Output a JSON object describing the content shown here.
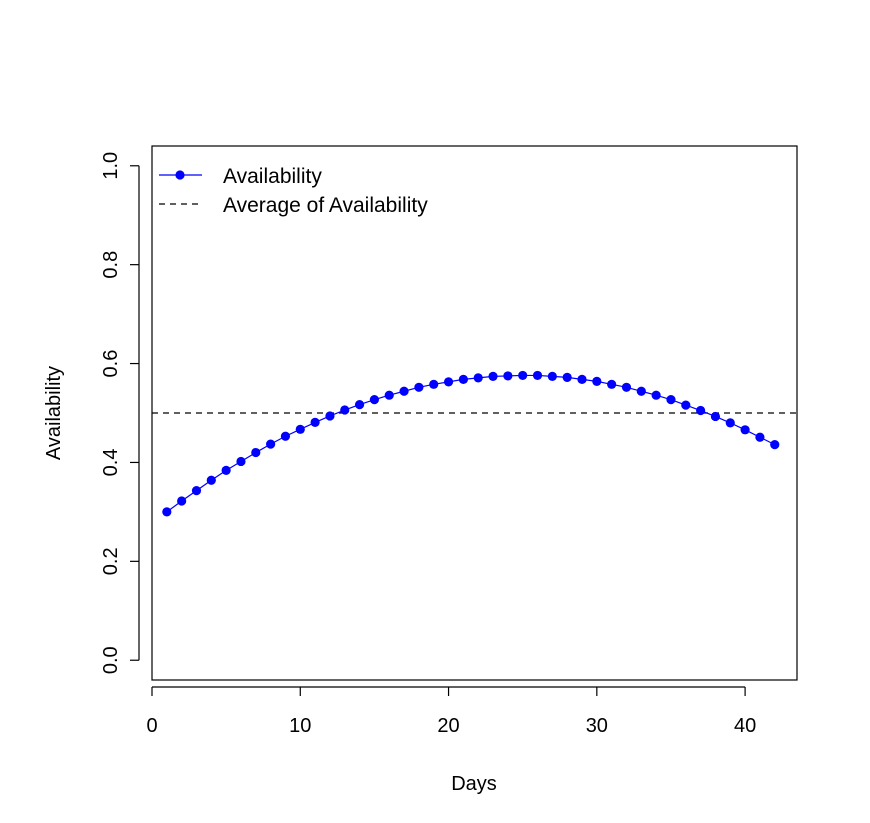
{
  "chart_data": {
    "type": "line",
    "title": "",
    "xlabel": "Days",
    "ylabel": "Availability",
    "xlim": [
      0,
      43.5
    ],
    "ylim": [
      -0.04,
      1.04
    ],
    "xticks": [
      0,
      10,
      20,
      30,
      40
    ],
    "yticks": [
      0.0,
      0.2,
      0.4,
      0.6,
      0.8,
      1.0
    ],
    "xtick_labels": [
      "0",
      "10",
      "20",
      "30",
      "40"
    ],
    "ytick_labels": [
      "0.0",
      "0.2",
      "0.4",
      "0.6",
      "0.8",
      "1.0"
    ],
    "grid": false,
    "legend_position": "top-left",
    "series": [
      {
        "name": "Availability",
        "color": "#0000ff",
        "style": "line-with-points",
        "x": [
          1,
          2,
          3,
          4,
          5,
          6,
          7,
          8,
          9,
          10,
          11,
          12,
          13,
          14,
          15,
          16,
          17,
          18,
          19,
          20,
          21,
          22,
          23,
          24,
          25,
          26,
          27,
          28,
          29,
          30,
          31,
          32,
          33,
          34,
          35,
          36,
          37,
          38,
          39,
          40,
          41,
          42
        ],
        "values": [
          0.3,
          0.322,
          0.343,
          0.364,
          0.384,
          0.402,
          0.42,
          0.437,
          0.453,
          0.467,
          0.481,
          0.494,
          0.506,
          0.517,
          0.527,
          0.536,
          0.544,
          0.552,
          0.558,
          0.563,
          0.568,
          0.571,
          0.574,
          0.575,
          0.576,
          0.576,
          0.574,
          0.572,
          0.568,
          0.564,
          0.558,
          0.552,
          0.544,
          0.536,
          0.527,
          0.516,
          0.505,
          0.493,
          0.48,
          0.466,
          0.451,
          0.436
        ]
      },
      {
        "name": "Average of Availability",
        "color": "#000000",
        "style": "dashed-hline",
        "value": 0.5
      }
    ]
  }
}
